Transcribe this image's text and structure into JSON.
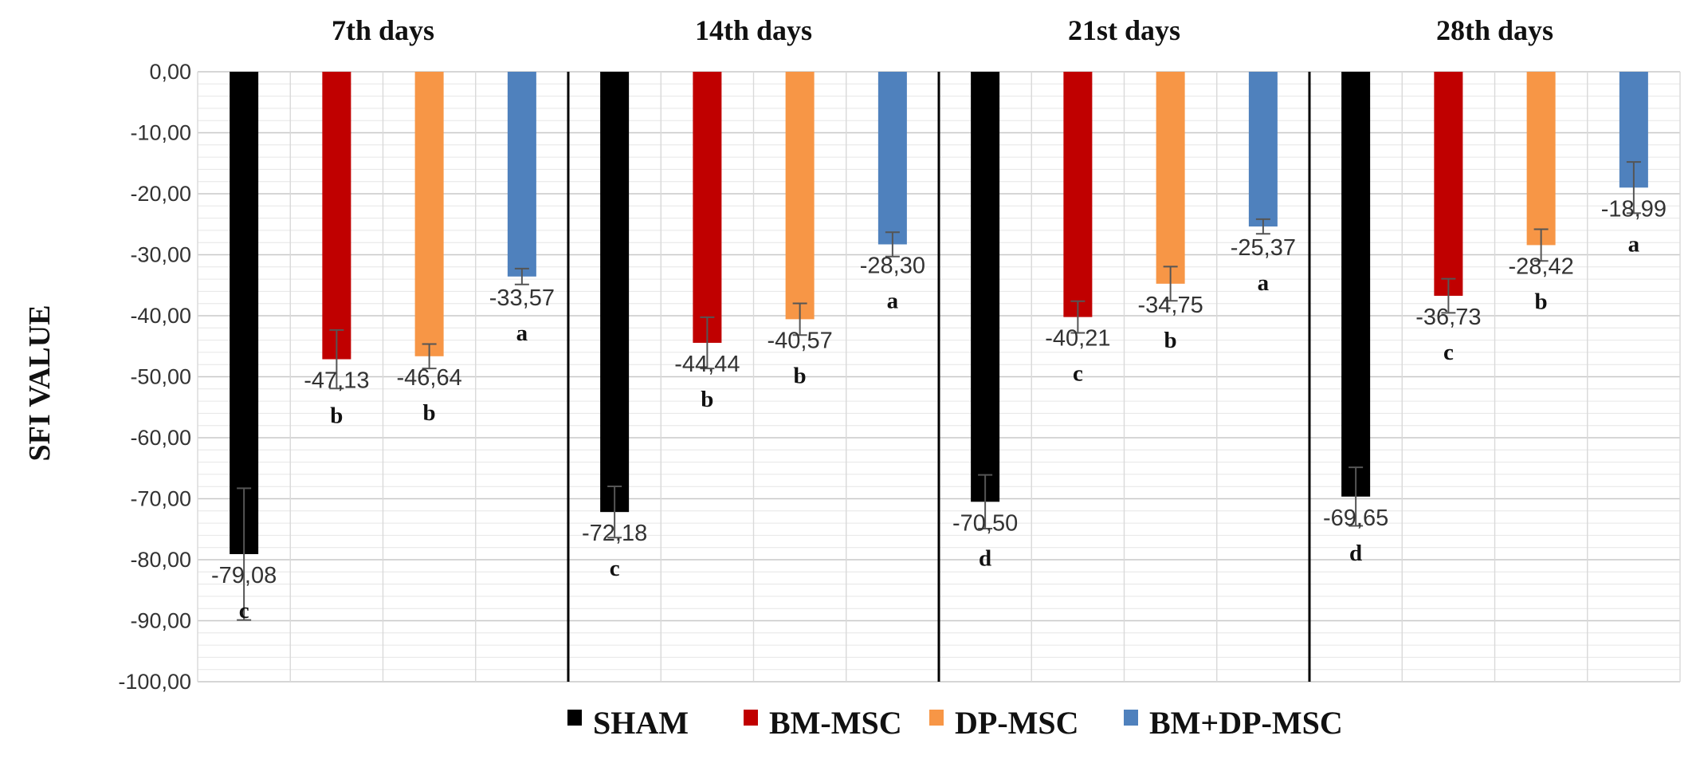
{
  "chart_data": {
    "type": "bar",
    "ylabel": "SFI VALUE",
    "ylim": [
      -100,
      0
    ],
    "y_ticks": [
      "0,00",
      "-10,00",
      "-20,00",
      "-30,00",
      "-40,00",
      "-50,00",
      "-60,00",
      "-70,00",
      "-80,00",
      "-90,00",
      "-100,00"
    ],
    "grid": true,
    "legend_position": "bottom",
    "series_order": [
      "SHAM",
      "BM-MSC",
      "DP-MSC",
      "BM+DP-MSC"
    ],
    "series_colors": [
      "#000000",
      "#c00000",
      "#f79646",
      "#4f81bd"
    ],
    "panels": [
      {
        "title": "7th days",
        "bars": [
          {
            "series": "SHAM",
            "value": -79.08,
            "error": 10.8,
            "value_label": "-79,08",
            "letter": "c"
          },
          {
            "series": "BM-MSC",
            "value": -47.13,
            "error": 4.8,
            "value_label": "-47,13",
            "letter": "b"
          },
          {
            "series": "DP-MSC",
            "value": -46.64,
            "error": 2.0,
            "value_label": "-46,64",
            "letter": "b"
          },
          {
            "series": "BM+DP-MSC",
            "value": -33.57,
            "error": 1.3,
            "value_label": "-33,57",
            "letter": "a"
          }
        ]
      },
      {
        "title": "14th  days",
        "bars": [
          {
            "series": "SHAM",
            "value": -72.18,
            "error": 4.2,
            "value_label": "-72,18",
            "letter": "c"
          },
          {
            "series": "BM-MSC",
            "value": -44.44,
            "error": 4.2,
            "value_label": "-44,44",
            "letter": "b"
          },
          {
            "series": "DP-MSC",
            "value": -40.57,
            "error": 2.6,
            "value_label": "-40,57",
            "letter": "b"
          },
          {
            "series": "BM+DP-MSC",
            "value": -28.3,
            "error": 2.0,
            "value_label": "-28,30",
            "letter": "a"
          }
        ]
      },
      {
        "title": "21st days",
        "bars": [
          {
            "series": "SHAM",
            "value": -70.5,
            "error": 4.4,
            "value_label": "-70,50",
            "letter": "d"
          },
          {
            "series": "BM-MSC",
            "value": -40.21,
            "error": 2.6,
            "value_label": "-40,21",
            "letter": "c"
          },
          {
            "series": "DP-MSC",
            "value": -34.75,
            "error": 2.8,
            "value_label": "-34,75",
            "letter": "b"
          },
          {
            "series": "BM+DP-MSC",
            "value": -25.37,
            "error": 1.2,
            "value_label": "-25,37",
            "letter": "a"
          }
        ]
      },
      {
        "title": "28th days",
        "bars": [
          {
            "series": "SHAM",
            "value": -69.65,
            "error": 4.8,
            "value_label": "-69,65",
            "letter": "d"
          },
          {
            "series": "BM-MSC",
            "value": -36.73,
            "error": 2.8,
            "value_label": "-36,73",
            "letter": "c"
          },
          {
            "series": "DP-MSC",
            "value": -28.42,
            "error": 2.6,
            "value_label": "-28,42",
            "letter": "b"
          },
          {
            "series": "BM+DP-MSC",
            "value": -18.99,
            "error": 4.2,
            "value_label": "-18,99",
            "letter": "a"
          }
        ]
      }
    ],
    "legend": [
      {
        "label": "SHAM",
        "color": "#000000"
      },
      {
        "label": "BM-MSC",
        "color": "#c00000"
      },
      {
        "label": "DP-MSC",
        "color": "#f79646"
      },
      {
        "label": "BM+DP-MSC",
        "color": "#4f81bd"
      }
    ]
  }
}
